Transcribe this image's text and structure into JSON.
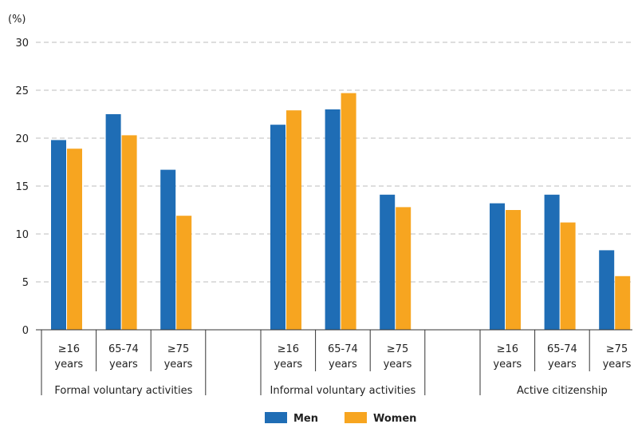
{
  "chart_data": {
    "type": "bar",
    "ylabel": "(%)",
    "ylim": [
      0,
      30
    ],
    "yticks": [
      0,
      5,
      10,
      15,
      20,
      25,
      30
    ],
    "groups": [
      {
        "label": "Formal voluntary activities",
        "categories": [
          {
            "line1": "≥16",
            "line2": "years"
          },
          {
            "line1": "65-74",
            "line2": "years"
          },
          {
            "line1": "≥75",
            "line2": "years"
          }
        ],
        "men": [
          19.8,
          22.5,
          16.7
        ],
        "women": [
          18.9,
          20.3,
          11.9
        ]
      },
      {
        "label": "Informal voluntary activities",
        "categories": [
          {
            "line1": "≥16",
            "line2": "years"
          },
          {
            "line1": "65-74",
            "line2": "years"
          },
          {
            "line1": "≥75",
            "line2": "years"
          }
        ],
        "men": [
          21.4,
          23.0,
          14.1
        ],
        "women": [
          22.9,
          24.7,
          12.8
        ]
      },
      {
        "label": "Active citizenship",
        "categories": [
          {
            "line1": "≥16",
            "line2": "years"
          },
          {
            "line1": "65-74",
            "line2": "years"
          },
          {
            "line1": "≥75",
            "line2": "years"
          }
        ],
        "men": [
          13.2,
          14.1,
          8.3
        ],
        "women": [
          12.5,
          11.2,
          5.6
        ]
      }
    ],
    "series": [
      {
        "name": "Men",
        "color": "#1f6db5"
      },
      {
        "name": "Women",
        "color": "#f7a520"
      }
    ],
    "legend_position": "bottom-center",
    "grid": true
  }
}
